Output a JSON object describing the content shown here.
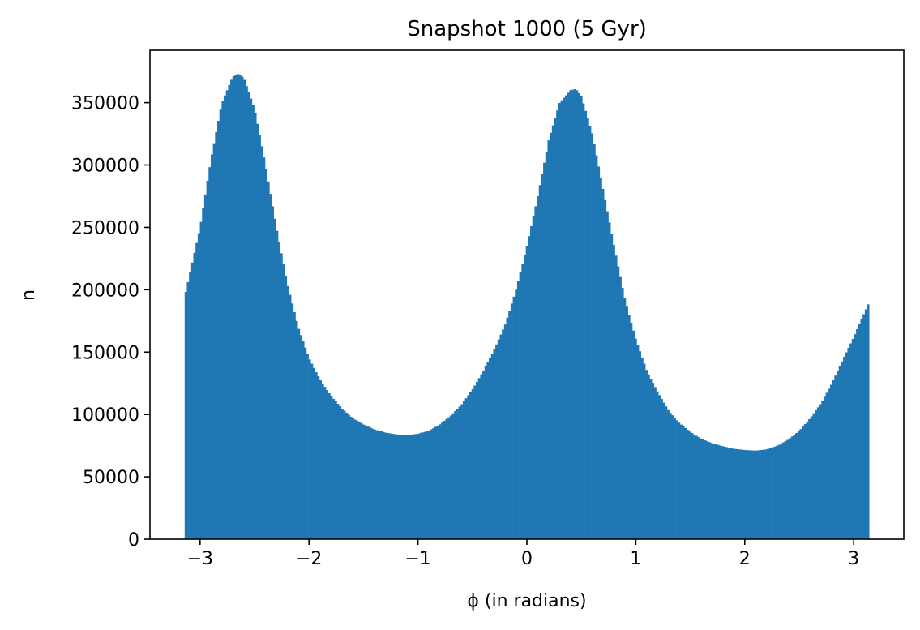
{
  "chart_data": {
    "type": "bar",
    "title": "Snapshot 1000 (5 Gyr)",
    "xlabel": "ϕ (in radians)",
    "ylabel": "n",
    "xlim": [
      -3.46,
      3.46
    ],
    "ylim": [
      0,
      392000
    ],
    "xticks": [
      -3,
      -2,
      -1,
      0,
      1,
      2,
      3
    ],
    "xtick_labels": [
      "−3",
      "−2",
      "−1",
      "0",
      "1",
      "2",
      "3"
    ],
    "yticks": [
      0,
      50000,
      100000,
      150000,
      200000,
      250000,
      300000,
      350000
    ],
    "ytick_labels": [
      "0",
      "50000",
      "100000",
      "150000",
      "200000",
      "250000",
      "300000",
      "350000"
    ],
    "bins": {
      "start": -3.14159,
      "end": 3.14159,
      "count": 315
    },
    "grid": false,
    "bar_color": "#1f77b4",
    "profile": {
      "x": [
        -3.14,
        -3.0,
        -2.9,
        -2.8,
        -2.7,
        -2.65,
        -2.6,
        -2.5,
        -2.4,
        -2.3,
        -2.2,
        -2.1,
        -2.0,
        -1.9,
        -1.8,
        -1.7,
        -1.6,
        -1.5,
        -1.4,
        -1.3,
        -1.2,
        -1.1,
        -1.0,
        -0.9,
        -0.8,
        -0.7,
        -0.6,
        -0.5,
        -0.4,
        -0.3,
        -0.2,
        -0.1,
        0.0,
        0.1,
        0.2,
        0.3,
        0.4,
        0.45,
        0.5,
        0.6,
        0.7,
        0.8,
        0.9,
        1.0,
        1.1,
        1.2,
        1.3,
        1.4,
        1.5,
        1.6,
        1.7,
        1.8,
        1.9,
        2.0,
        2.1,
        2.2,
        2.3,
        2.4,
        2.5,
        2.6,
        2.7,
        2.8,
        2.9,
        3.0,
        3.14
      ],
      "values": [
        195000,
        250000,
        305000,
        350000,
        371000,
        373000,
        370000,
        345000,
        300000,
        250000,
        205000,
        170000,
        145000,
        128000,
        115000,
        105000,
        97000,
        92000,
        88000,
        85500,
        84000,
        83500,
        84500,
        87000,
        92000,
        99000,
        108000,
        120000,
        135000,
        152000,
        172000,
        200000,
        235000,
        275000,
        320000,
        350000,
        360000,
        361000,
        355000,
        325000,
        280000,
        235000,
        192000,
        160000,
        135000,
        118000,
        103000,
        93000,
        86000,
        80500,
        77000,
        74500,
        72500,
        71500,
        71000,
        72000,
        75000,
        80000,
        87000,
        97000,
        109000,
        125000,
        144000,
        162000,
        190000
      ]
    }
  }
}
